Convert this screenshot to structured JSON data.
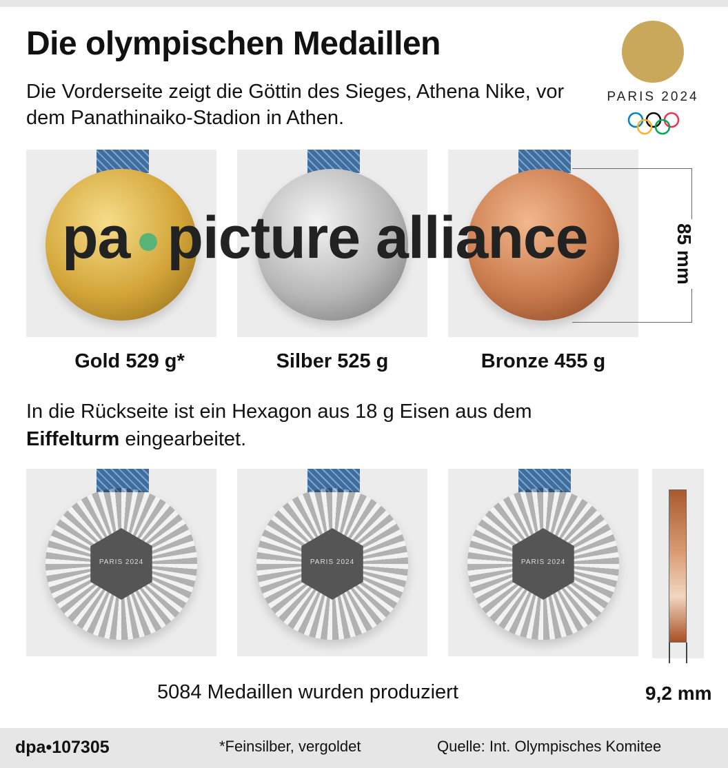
{
  "title": "Die olympischen Medaillen",
  "subtitle": "Die Vorderseite zeigt die Göttin des Sieges, Athena Nike, vor dem Panathinaiko-Stadion in Athen.",
  "logo": {
    "text": "PARIS 2024",
    "flame_color": "#c9a85c"
  },
  "medals": [
    {
      "label": "Gold 529 g*",
      "type": "gold"
    },
    {
      "label": "Silber 525 g",
      "type": "silver"
    },
    {
      "label": "Bronze 455 g",
      "type": "bronze"
    }
  ],
  "diameter_label": "85 mm",
  "back_text": {
    "prefix": "In die Rückseite ist ein Hexagon aus 18 g Eisen aus dem",
    "bold": "Eiffelturm",
    "suffix": " eingearbeitet."
  },
  "hex_text": "PARIS 2024",
  "watermark": {
    "left": "pa",
    "right": "picture alliance",
    "dot_color": "#5ab478"
  },
  "produced": "5084 Medaillen wurden produziert",
  "thickness_label": "9,2 mm",
  "footer": {
    "id": "dpa•107305",
    "note": "*Feinsilber, vergoldet",
    "source": "Quelle: Int. Olympisches Komitee"
  }
}
